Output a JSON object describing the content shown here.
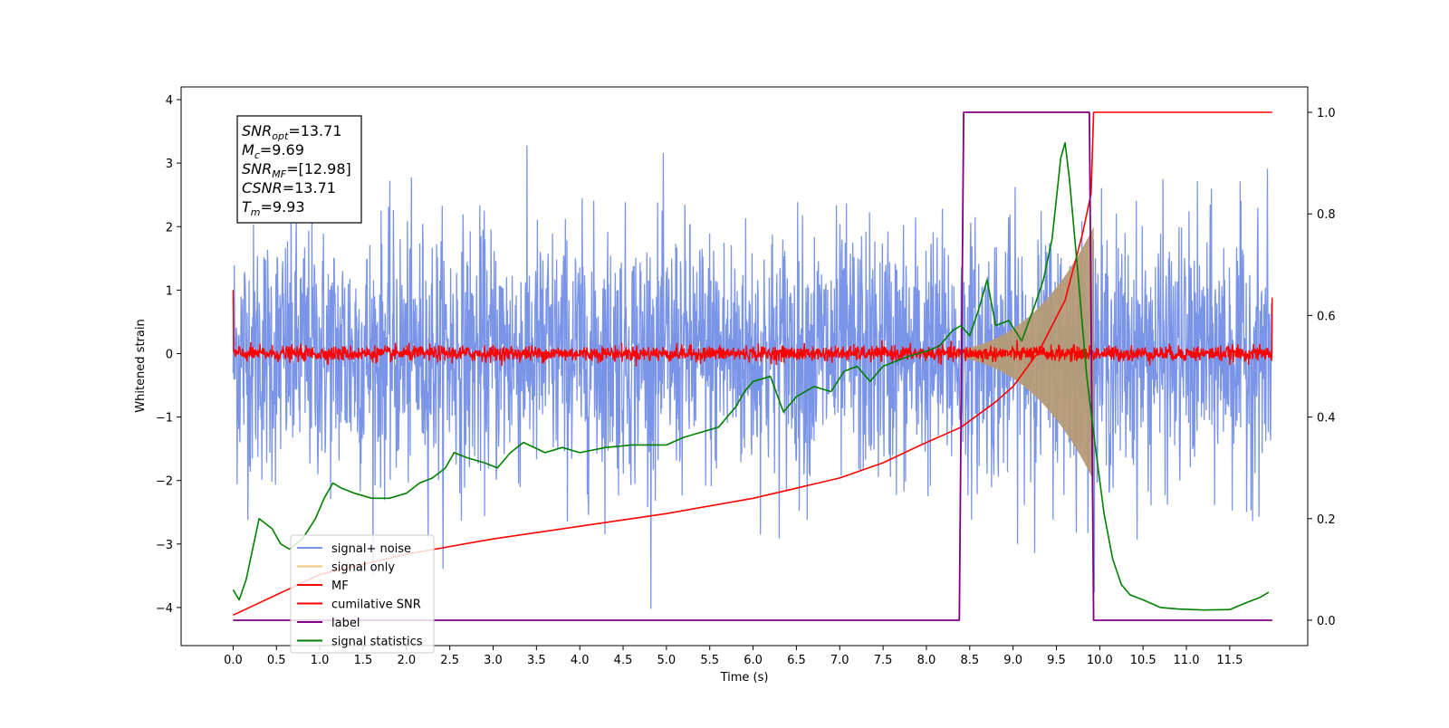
{
  "chart_data": {
    "type": "line",
    "title": "",
    "xlabel": "Time (s)",
    "ylabel": "Whitened strain",
    "xlim": [
      -0.6,
      12.4
    ],
    "ylim": [
      -4.6,
      4.2
    ],
    "y2lim": [
      -0.05,
      1.05
    ],
    "x_ticks": [
      0.0,
      0.5,
      1.0,
      1.5,
      2.0,
      2.5,
      3.0,
      3.5,
      4.0,
      4.5,
      5.0,
      5.5,
      6.0,
      6.5,
      7.0,
      7.5,
      8.0,
      8.5,
      9.0,
      9.5,
      10.0,
      10.5,
      11.0,
      11.5
    ],
    "x_tick_labels": [
      "0.0",
      "0.5",
      "1.0",
      "1.5",
      "2.0",
      "2.5",
      "3.0",
      "3.5",
      "4.0",
      "4.5",
      "5.0",
      "5.5",
      "6.0",
      "6.5",
      "7.0",
      "7.5",
      "8.0",
      "8.5",
      "9.0",
      "9.5",
      "10.0",
      "10.5",
      "11.0",
      "11.5"
    ],
    "y_ticks": [
      4,
      3,
      2,
      1,
      0,
      -1,
      -2,
      -3,
      -4
    ],
    "y_tick_labels": [
      "4",
      "3",
      "2",
      "1",
      "0",
      "−1",
      "−2",
      "−3",
      "−4"
    ],
    "y2_ticks": [
      1.0,
      0.8,
      0.6,
      0.4,
      0.2,
      0.0
    ],
    "y2_tick_labels": [
      "1.0",
      "0.8",
      "0.6",
      "0.4",
      "0.2",
      "0.0"
    ],
    "grid": false,
    "legend_placement": "lower-left",
    "annotation": {
      "lines": [
        {
          "base": "SNR",
          "sub": "opt",
          "value": "=13.71"
        },
        {
          "base": "M",
          "sub": "c",
          "value": "=9.69"
        },
        {
          "base": "SNR",
          "sub": "MF",
          "value": "=[12.98]"
        },
        {
          "base": "CSNR",
          "sub": "",
          "value": "=13.71"
        },
        {
          "base": "T",
          "sub": "m",
          "value": "=9.93"
        }
      ]
    },
    "series": [
      {
        "name": "signal+ noise",
        "color": "#7a94e8",
        "axis": "left",
        "kind": "noise",
        "amplitude_sigma": 1.0,
        "x_range": [
          0.0,
          11.99
        ]
      },
      {
        "name": "signal only",
        "color": "#f6c97f",
        "axis": "left",
        "kind": "chirp",
        "x_range": [
          7.6,
          9.93
        ],
        "peak_amplitude": 2.0
      },
      {
        "name": "MF",
        "color": "#ff0000",
        "axis": "left",
        "kind": "noise",
        "amplitude_sigma": 0.06,
        "x_range": [
          0.0,
          11.99
        ],
        "start_value": 1.0,
        "end_value": 0.88
      },
      {
        "name": "cumilative SNR",
        "color": "#ff0000",
        "axis": "right",
        "x": [
          0.0,
          1.0,
          2.0,
          3.0,
          4.0,
          5.0,
          6.0,
          7.0,
          7.5,
          8.0,
          8.4,
          8.8,
          9.0,
          9.3,
          9.6,
          9.8,
          9.9,
          9.93,
          11.99
        ],
        "y": [
          0.01,
          0.09,
          0.13,
          0.16,
          0.185,
          0.21,
          0.24,
          0.28,
          0.31,
          0.35,
          0.38,
          0.43,
          0.46,
          0.53,
          0.63,
          0.76,
          0.84,
          1.0,
          1.0
        ]
      },
      {
        "name": "label",
        "color": "#800080",
        "axis": "right",
        "x": [
          0.0,
          8.38,
          8.43,
          9.88,
          9.93,
          11.99
        ],
        "y": [
          0.0,
          0.0,
          1.0,
          1.0,
          0.0,
          0.0
        ]
      },
      {
        "name": "signal statistics",
        "color": "#008000",
        "axis": "right",
        "x": [
          0.0,
          0.07,
          0.15,
          0.3,
          0.45,
          0.55,
          0.65,
          0.8,
          0.95,
          1.05,
          1.15,
          1.25,
          1.4,
          1.6,
          1.8,
          2.0,
          2.15,
          2.3,
          2.45,
          2.55,
          2.7,
          2.9,
          3.05,
          3.2,
          3.35,
          3.6,
          3.8,
          4.0,
          4.3,
          4.6,
          5.0,
          5.2,
          5.4,
          5.6,
          5.8,
          5.9,
          6.0,
          6.2,
          6.35,
          6.5,
          6.7,
          6.9,
          7.05,
          7.2,
          7.35,
          7.5,
          7.65,
          7.8,
          8.0,
          8.15,
          8.3,
          8.4,
          8.5,
          8.6,
          8.7,
          8.8,
          8.95,
          9.1,
          9.25,
          9.35,
          9.45,
          9.55,
          9.6,
          9.65,
          9.75,
          9.85,
          9.95,
          10.05,
          10.15,
          10.25,
          10.35,
          10.5,
          10.7,
          10.9,
          11.2,
          11.5,
          11.7,
          11.85,
          11.95
        ],
        "y": [
          0.06,
          0.04,
          0.08,
          0.2,
          0.18,
          0.15,
          0.14,
          0.16,
          0.2,
          0.24,
          0.27,
          0.26,
          0.25,
          0.24,
          0.24,
          0.25,
          0.27,
          0.28,
          0.3,
          0.33,
          0.32,
          0.31,
          0.3,
          0.33,
          0.35,
          0.33,
          0.34,
          0.33,
          0.34,
          0.345,
          0.345,
          0.36,
          0.37,
          0.38,
          0.42,
          0.45,
          0.47,
          0.48,
          0.41,
          0.44,
          0.46,
          0.45,
          0.49,
          0.5,
          0.47,
          0.5,
          0.51,
          0.52,
          0.53,
          0.54,
          0.57,
          0.58,
          0.56,
          0.61,
          0.67,
          0.58,
          0.59,
          0.55,
          0.62,
          0.67,
          0.75,
          0.91,
          0.94,
          0.87,
          0.68,
          0.48,
          0.34,
          0.21,
          0.12,
          0.07,
          0.05,
          0.04,
          0.025,
          0.022,
          0.02,
          0.021,
          0.035,
          0.045,
          0.055
        ]
      }
    ]
  }
}
